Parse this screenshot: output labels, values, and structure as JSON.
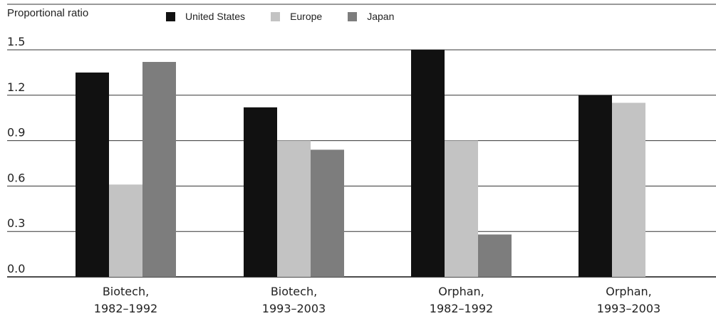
{
  "chart_data": {
    "type": "bar",
    "ylabel": "Proportional ratio",
    "xlabel": "",
    "title": "",
    "ylim": [
      0,
      1.5
    ],
    "yticks": [
      "0.0",
      "0.3",
      "0.6",
      "0.9",
      "1.2",
      "1.5"
    ],
    "categories": [
      [
        "Biotech,",
        "1982–1992"
      ],
      [
        "Biotech,",
        "1993–2003"
      ],
      [
        "Orphan,",
        "1982–1992"
      ],
      [
        "Orphan,",
        "1993–2003"
      ]
    ],
    "series": [
      {
        "name": "United States",
        "color": "#111111",
        "values": [
          1.35,
          1.12,
          1.5,
          1.2
        ]
      },
      {
        "name": "Europe",
        "color": "#c3c3c3",
        "values": [
          0.61,
          0.9,
          0.9,
          1.15
        ]
      },
      {
        "name": "Japan",
        "color": "#7d7d7d",
        "values": [
          1.42,
          0.84,
          0.28,
          null
        ]
      }
    ],
    "grid": true,
    "legend_position": "top"
  }
}
